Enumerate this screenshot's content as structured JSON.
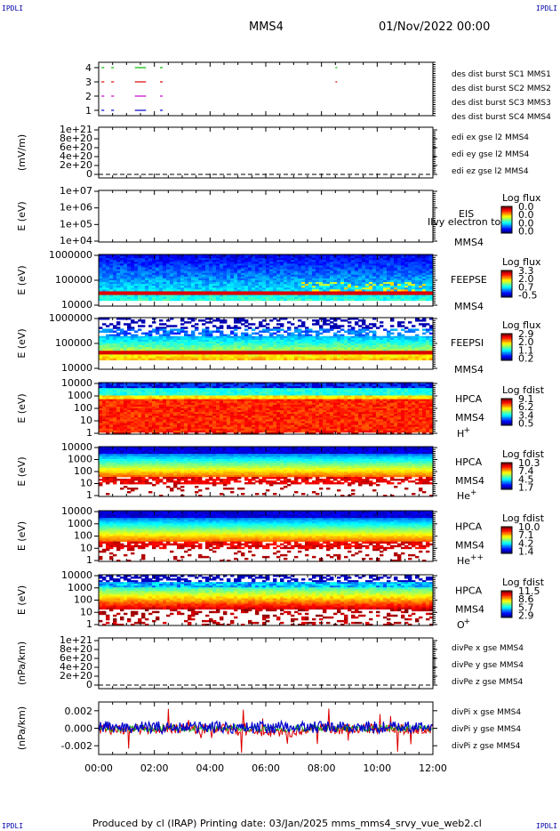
{
  "corner_label": "IPDLI",
  "header": {
    "spacecraft": "MMS4",
    "datetime": "01/Nov/2022 00:00"
  },
  "footer": {
    "text": "Produced by cl (IRAP)   Printing date: 03/Jan/2025   mms_mms4_srvy_vue_web2.cl"
  },
  "colors": {
    "red": "#dd0000",
    "green": "#00bb00",
    "blue": "#0000cc",
    "magenta": "#cc00cc",
    "black": "#000000"
  },
  "chart_data": [
    {
      "id": "burst",
      "type": "scatter",
      "yticks": [
        "1",
        "2",
        "3",
        "4"
      ],
      "legend": [
        {
          "text": "des dist burst SC1 MMS1",
          "color": "#0000cc"
        },
        {
          "text": "des dist burst SC2 MMS2",
          "color": "#cc00cc"
        },
        {
          "text": "des dist burst SC3 MMS3",
          "color": "#dd0000"
        },
        {
          "text": "des dist burst SC4 MMS4",
          "color": "#00bb00"
        }
      ],
      "segments": [
        [
          0.1,
          0.2
        ],
        [
          0.45,
          0.55
        ],
        [
          1.3,
          1.7
        ],
        [
          2.2,
          2.3
        ],
        [
          8.5,
          8.52
        ]
      ]
    },
    {
      "id": "edi",
      "type": "line",
      "ylabel": "(mV/m)",
      "yticks": [
        "1e+21",
        "8e+20",
        "6e+20",
        "4e+20",
        "2e+20",
        "0"
      ],
      "legend": [
        {
          "text": "edi ex gse l2 MMS4",
          "color": "#dd0000"
        },
        {
          "text": "edi ey gse l2 MMS4",
          "color": "#00bb00"
        },
        {
          "text": "edi ez gse l2 MMS4",
          "color": "#0000cc"
        }
      ]
    },
    {
      "id": "eis",
      "type": "heatmap",
      "ylabel": "E (eV)",
      "yticks": [
        "1e+07",
        "1e+06",
        "1e+05",
        "1e+04"
      ],
      "labels": [
        "EIS",
        "MMS4"
      ],
      "overlap_text": "Ilvy electron to",
      "cbar_title": "Log flux",
      "cbar_ticks": [
        "0.0",
        "0.0",
        "0.0",
        "0.0"
      ]
    },
    {
      "id": "feepse",
      "type": "heatmap",
      "ylabel": "E (eV)",
      "yticks": [
        "1000000",
        "100000",
        "10000"
      ],
      "labels": [
        "FEEPSE",
        "MMS4"
      ],
      "cbar_title": "Log flux",
      "cbar_ticks": [
        "3.3",
        "2.0",
        "0.7",
        "-0.5"
      ]
    },
    {
      "id": "feepsi",
      "type": "heatmap",
      "ylabel": "E (eV)",
      "yticks": [
        "1000000",
        "100000",
        "10000"
      ],
      "labels": [
        "FEEPSI",
        "MMS4"
      ],
      "cbar_title": "Log flux",
      "cbar_ticks": [
        "2.9",
        "2.0",
        "1.1",
        "0.2"
      ]
    },
    {
      "id": "hpca_h",
      "type": "heatmap",
      "ylabel": "E (eV)",
      "yticks": [
        "10000",
        "1000",
        "100",
        "10",
        "1"
      ],
      "labels": [
        "HPCA",
        "MMS4"
      ],
      "species": "H",
      "charge": "+",
      "cbar_title": "Log fdist",
      "cbar_ticks": [
        "9.1",
        "6.2",
        "3.4",
        "0.5"
      ]
    },
    {
      "id": "hpca_he",
      "type": "heatmap",
      "ylabel": "E (eV)",
      "yticks": [
        "10000",
        "1000",
        "100",
        "10",
        "1"
      ],
      "labels": [
        "HPCA",
        "MMS4"
      ],
      "species": "He",
      "charge": "+",
      "cbar_title": "Log fdist",
      "cbar_ticks": [
        "10.3",
        "7.4",
        "4.5",
        "1.7"
      ]
    },
    {
      "id": "hpca_hepp",
      "type": "heatmap",
      "ylabel": "E (eV)",
      "yticks": [
        "10000",
        "1000",
        "100",
        "10",
        "1"
      ],
      "labels": [
        "HPCA",
        "MMS4"
      ],
      "species": "He",
      "charge": "++",
      "cbar_title": "Log fdist",
      "cbar_ticks": [
        "10.0",
        "7.1",
        "4.2",
        "1.4"
      ]
    },
    {
      "id": "hpca_o",
      "type": "heatmap",
      "ylabel": "E (eV)",
      "yticks": [
        "10000",
        "1000",
        "100",
        "10",
        "1"
      ],
      "labels": [
        "HPCA",
        "MMS4"
      ],
      "species": "O",
      "charge": "+",
      "cbar_title": "Log fdist",
      "cbar_ticks": [
        "11.5",
        "8.6",
        "5.7",
        "2.9"
      ]
    },
    {
      "id": "divpe",
      "type": "line",
      "ylabel": "(nPa/km)",
      "yticks": [
        "1e+21",
        "8e+20",
        "6e+20",
        "4e+20",
        "2e+20",
        "0"
      ],
      "legend": [
        {
          "text": "divPe x gse MMS4",
          "color": "#dd0000"
        },
        {
          "text": "divPe y gse MMS4",
          "color": "#00bb00"
        },
        {
          "text": "divPe z gse MMS4",
          "color": "#0000cc"
        }
      ]
    },
    {
      "id": "divpi",
      "type": "line",
      "ylabel": "(nPa/km)",
      "yticks": [
        "0.002",
        "0.000",
        "-0.002"
      ],
      "ylim": [
        -0.003,
        0.003
      ],
      "legend": [
        {
          "text": "divPi x gse MMS4",
          "color": "#dd0000"
        },
        {
          "text": "divPi y gse MMS4",
          "color": "#00bb00"
        },
        {
          "text": "divPi z gse MMS4",
          "color": "#0000cc"
        }
      ]
    }
  ],
  "xaxis": {
    "ticks": [
      "00:00",
      "02:00",
      "04:00",
      "06:00",
      "08:00",
      "10:00",
      "12:00"
    ],
    "range_hours": [
      0,
      12
    ]
  }
}
